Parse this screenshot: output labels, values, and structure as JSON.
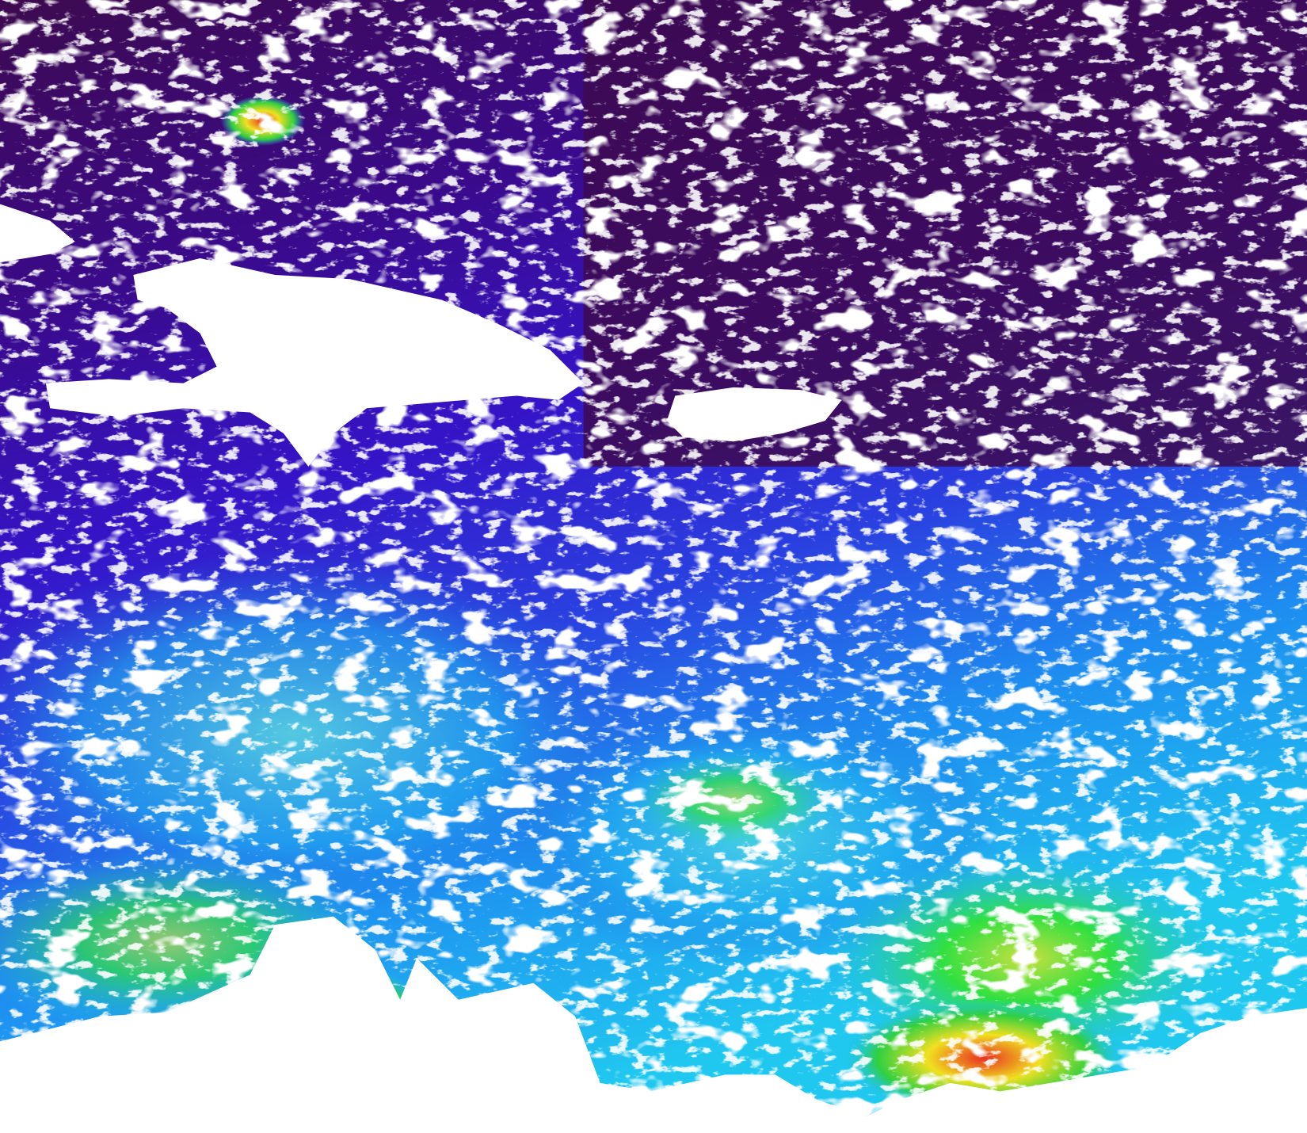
{
  "image": {
    "kind": "satellite ocean color composite",
    "colors": {
      "deep_low": "#3d0a4f",
      "low": "#3a10c8",
      "mid_low": "#1e6cf0",
      "mid": "#18c8f0",
      "mid_high": "#22e03a",
      "high": "#f0e020",
      "very_high": "#e83020",
      "land_cloud_mask": "#ffffff"
    }
  }
}
